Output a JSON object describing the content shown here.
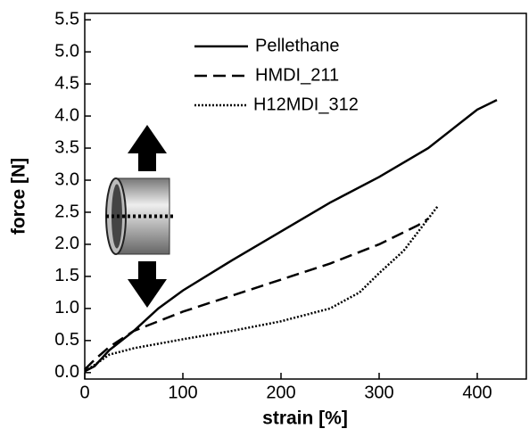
{
  "chart_data": {
    "type": "line",
    "xlabel": "strain [%]",
    "ylabel": "force [N]",
    "xlim": [
      0,
      450
    ],
    "ylim": [
      -0.1,
      5.6
    ],
    "xticks": [
      0,
      100,
      200,
      300,
      400
    ],
    "yticks": [
      {
        "value": 0,
        "label": "0.0"
      },
      {
        "value": 0.5,
        "label": "0.5"
      },
      {
        "value": 1,
        "label": "1.0"
      },
      {
        "value": 1.5,
        "label": "1.5"
      },
      {
        "value": 2,
        "label": "2.0"
      },
      {
        "value": 2.5,
        "label": "2.5"
      },
      {
        "value": 3,
        "label": "3.0"
      },
      {
        "value": 3.5,
        "label": "3.5"
      },
      {
        "value": 4,
        "label": "4.0"
      },
      {
        "value": 4.5,
        "label": "4.5"
      },
      {
        "value": 5,
        "label": "5.0"
      },
      {
        "value": 5.5,
        "label": "5.5"
      }
    ],
    "grid": false,
    "series": [
      {
        "name": "Pellethane",
        "color": "#000000",
        "dash": "solid",
        "x": [
          0,
          10,
          25,
          50,
          75,
          100,
          150,
          200,
          250,
          300,
          350,
          400,
          420
        ],
        "values": [
          0.02,
          0.1,
          0.35,
          0.65,
          1.0,
          1.28,
          1.75,
          2.2,
          2.65,
          3.05,
          3.5,
          4.1,
          4.25
        ]
      },
      {
        "name": "HMDI_211",
        "color": "#000000",
        "dash": "dashed",
        "x": [
          0,
          10,
          25,
          50,
          100,
          150,
          200,
          250,
          300,
          340,
          350
        ],
        "values": [
          0.05,
          0.2,
          0.4,
          0.65,
          0.95,
          1.2,
          1.45,
          1.7,
          2.0,
          2.3,
          2.4
        ]
      },
      {
        "name": "H12MDI_312",
        "color": "#000000",
        "dash": "dotted",
        "x": [
          0,
          10,
          25,
          50,
          100,
          150,
          200,
          250,
          280,
          300,
          325,
          345,
          360
        ],
        "values": [
          0.02,
          0.12,
          0.28,
          0.38,
          0.52,
          0.65,
          0.8,
          1.0,
          1.25,
          1.55,
          1.9,
          2.3,
          2.6
        ]
      }
    ]
  }
}
